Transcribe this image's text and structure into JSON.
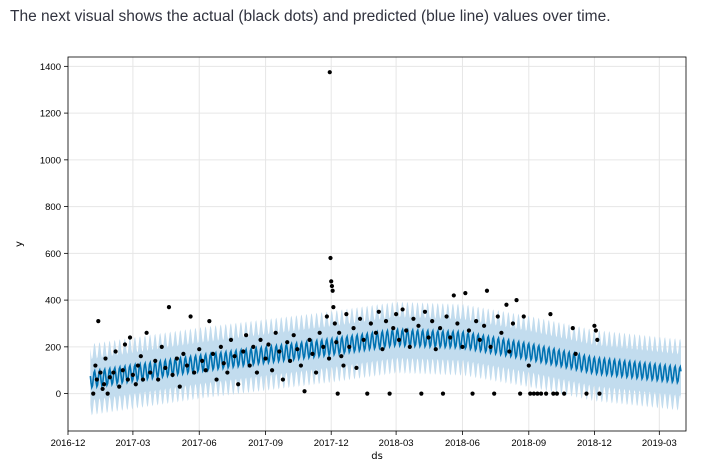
{
  "caption": "The next visual shows the actual (black dots) and predicted (blue line) values over time.",
  "chart_data": {
    "type": "line",
    "title": "",
    "xlabel": "ds",
    "ylabel": "y",
    "ylim": [
      -160,
      1440
    ],
    "xlim": [
      "2016-12-01",
      "2019-04-07"
    ],
    "grid": true,
    "x_ticks": [
      "2016-12",
      "2017-03",
      "2017-06",
      "2017-09",
      "2017-12",
      "2018-03",
      "2018-06",
      "2018-09",
      "2018-12",
      "2019-03"
    ],
    "y_ticks": [
      0,
      200,
      400,
      600,
      800,
      1000,
      1200,
      1400
    ],
    "colors": {
      "forecast_line": "#0072b2",
      "uncertainty_band": "#c2dcee",
      "actual_points": "#000000",
      "grid": "#e6e6e6"
    },
    "series": [
      {
        "name": "actual",
        "kind": "scatter",
        "points": [
          [
            "2017-01-05",
            0
          ],
          [
            "2017-01-08",
            120
          ],
          [
            "2017-01-10",
            60
          ],
          [
            "2017-01-12",
            310
          ],
          [
            "2017-01-15",
            90
          ],
          [
            "2017-01-18",
            20
          ],
          [
            "2017-01-20",
            40
          ],
          [
            "2017-01-22",
            150
          ],
          [
            "2017-01-25",
            0
          ],
          [
            "2017-01-28",
            70
          ],
          [
            "2017-02-02",
            90
          ],
          [
            "2017-02-05",
            180
          ],
          [
            "2017-02-10",
            30
          ],
          [
            "2017-02-15",
            100
          ],
          [
            "2017-02-18",
            210
          ],
          [
            "2017-02-22",
            60
          ],
          [
            "2017-02-25",
            240
          ],
          [
            "2017-03-01",
            80
          ],
          [
            "2017-03-05",
            40
          ],
          [
            "2017-03-08",
            120
          ],
          [
            "2017-03-12",
            160
          ],
          [
            "2017-03-15",
            60
          ],
          [
            "2017-03-20",
            260
          ],
          [
            "2017-03-25",
            90
          ],
          [
            "2017-04-01",
            140
          ],
          [
            "2017-04-05",
            60
          ],
          [
            "2017-04-10",
            200
          ],
          [
            "2017-04-15",
            110
          ],
          [
            "2017-04-20",
            370
          ],
          [
            "2017-04-25",
            80
          ],
          [
            "2017-05-01",
            150
          ],
          [
            "2017-05-05",
            30
          ],
          [
            "2017-05-10",
            170
          ],
          [
            "2017-05-15",
            120
          ],
          [
            "2017-05-20",
            330
          ],
          [
            "2017-05-25",
            90
          ],
          [
            "2017-06-01",
            190
          ],
          [
            "2017-06-05",
            140
          ],
          [
            "2017-06-10",
            100
          ],
          [
            "2017-06-15",
            310
          ],
          [
            "2017-06-20",
            170
          ],
          [
            "2017-06-25",
            60
          ],
          [
            "2017-07-01",
            200
          ],
          [
            "2017-07-05",
            130
          ],
          [
            "2017-07-10",
            90
          ],
          [
            "2017-07-15",
            230
          ],
          [
            "2017-07-20",
            160
          ],
          [
            "2017-07-25",
            40
          ],
          [
            "2017-08-01",
            180
          ],
          [
            "2017-08-05",
            250
          ],
          [
            "2017-08-10",
            120
          ],
          [
            "2017-08-15",
            200
          ],
          [
            "2017-08-20",
            90
          ],
          [
            "2017-08-25",
            230
          ],
          [
            "2017-09-01",
            150
          ],
          [
            "2017-09-05",
            210
          ],
          [
            "2017-09-10",
            100
          ],
          [
            "2017-09-15",
            260
          ],
          [
            "2017-09-20",
            180
          ],
          [
            "2017-09-25",
            60
          ],
          [
            "2017-10-01",
            220
          ],
          [
            "2017-10-05",
            140
          ],
          [
            "2017-10-10",
            250
          ],
          [
            "2017-10-15",
            190
          ],
          [
            "2017-10-20",
            120
          ],
          [
            "2017-10-25",
            10
          ],
          [
            "2017-11-01",
            230
          ],
          [
            "2017-11-05",
            170
          ],
          [
            "2017-11-10",
            90
          ],
          [
            "2017-11-15",
            260
          ],
          [
            "2017-11-20",
            200
          ],
          [
            "2017-11-25",
            330
          ],
          [
            "2017-11-28",
            150
          ],
          [
            "2017-11-29",
            1375
          ],
          [
            "2017-11-30",
            580
          ],
          [
            "2017-12-01",
            480
          ],
          [
            "2017-12-02",
            460
          ],
          [
            "2017-12-03",
            440
          ],
          [
            "2017-12-04",
            370
          ],
          [
            "2017-12-06",
            300
          ],
          [
            "2017-12-08",
            220
          ],
          [
            "2017-12-10",
            0
          ],
          [
            "2017-12-12",
            260
          ],
          [
            "2017-12-15",
            160
          ],
          [
            "2017-12-18",
            120
          ],
          [
            "2017-12-22",
            340
          ],
          [
            "2017-12-26",
            200
          ],
          [
            "2018-01-01",
            280
          ],
          [
            "2018-01-05",
            110
          ],
          [
            "2018-01-10",
            320
          ],
          [
            "2018-01-15",
            230
          ],
          [
            "2018-01-20",
            0
          ],
          [
            "2018-01-25",
            300
          ],
          [
            "2018-02-01",
            260
          ],
          [
            "2018-02-05",
            350
          ],
          [
            "2018-02-10",
            190
          ],
          [
            "2018-02-15",
            310
          ],
          [
            "2018-02-20",
            0
          ],
          [
            "2018-02-25",
            280
          ],
          [
            "2018-03-01",
            340
          ],
          [
            "2018-03-05",
            230
          ],
          [
            "2018-03-10",
            360
          ],
          [
            "2018-03-15",
            270
          ],
          [
            "2018-03-20",
            200
          ],
          [
            "2018-03-25",
            320
          ],
          [
            "2018-04-01",
            290
          ],
          [
            "2018-04-05",
            0
          ],
          [
            "2018-04-10",
            350
          ],
          [
            "2018-04-15",
            240
          ],
          [
            "2018-04-20",
            310
          ],
          [
            "2018-04-25",
            190
          ],
          [
            "2018-05-01",
            280
          ],
          [
            "2018-05-05",
            0
          ],
          [
            "2018-05-10",
            330
          ],
          [
            "2018-05-15",
            240
          ],
          [
            "2018-05-20",
            420
          ],
          [
            "2018-05-25",
            300
          ],
          [
            "2018-06-01",
            200
          ],
          [
            "2018-06-05",
            430
          ],
          [
            "2018-06-10",
            270
          ],
          [
            "2018-06-15",
            0
          ],
          [
            "2018-06-20",
            310
          ],
          [
            "2018-06-25",
            230
          ],
          [
            "2018-07-01",
            290
          ],
          [
            "2018-07-05",
            440
          ],
          [
            "2018-07-10",
            200
          ],
          [
            "2018-07-15",
            0
          ],
          [
            "2018-07-20",
            330
          ],
          [
            "2018-07-25",
            260
          ],
          [
            "2018-08-01",
            380
          ],
          [
            "2018-08-05",
            180
          ],
          [
            "2018-08-10",
            300
          ],
          [
            "2018-08-15",
            400
          ],
          [
            "2018-08-20",
            0
          ],
          [
            "2018-08-25",
            330
          ],
          [
            "2018-09-01",
            120
          ],
          [
            "2018-09-03",
            0
          ],
          [
            "2018-09-08",
            0
          ],
          [
            "2018-09-13",
            0
          ],
          [
            "2018-09-18",
            0
          ],
          [
            "2018-09-25",
            0
          ],
          [
            "2018-10-01",
            340
          ],
          [
            "2018-10-05",
            0
          ],
          [
            "2018-10-10",
            0
          ],
          [
            "2018-10-20",
            0
          ],
          [
            "2018-11-01",
            280
          ],
          [
            "2018-11-05",
            170
          ],
          [
            "2018-11-20",
            0
          ],
          [
            "2018-12-01",
            290
          ],
          [
            "2018-12-03",
            270
          ],
          [
            "2018-12-05",
            230
          ],
          [
            "2018-12-08",
            0
          ]
        ]
      },
      {
        "name": "predicted",
        "kind": "line",
        "trend": [
          [
            "2017-01-01",
            60
          ],
          [
            "2017-06-01",
            130
          ],
          [
            "2017-12-01",
            200
          ],
          [
            "2018-03-01",
            240
          ],
          [
            "2018-06-01",
            230
          ],
          [
            "2018-09-01",
            180
          ],
          [
            "2018-12-01",
            120
          ],
          [
            "2019-03-31",
            80
          ]
        ],
        "weekly_amplitude": 35,
        "band_half_width": 120
      }
    ]
  }
}
